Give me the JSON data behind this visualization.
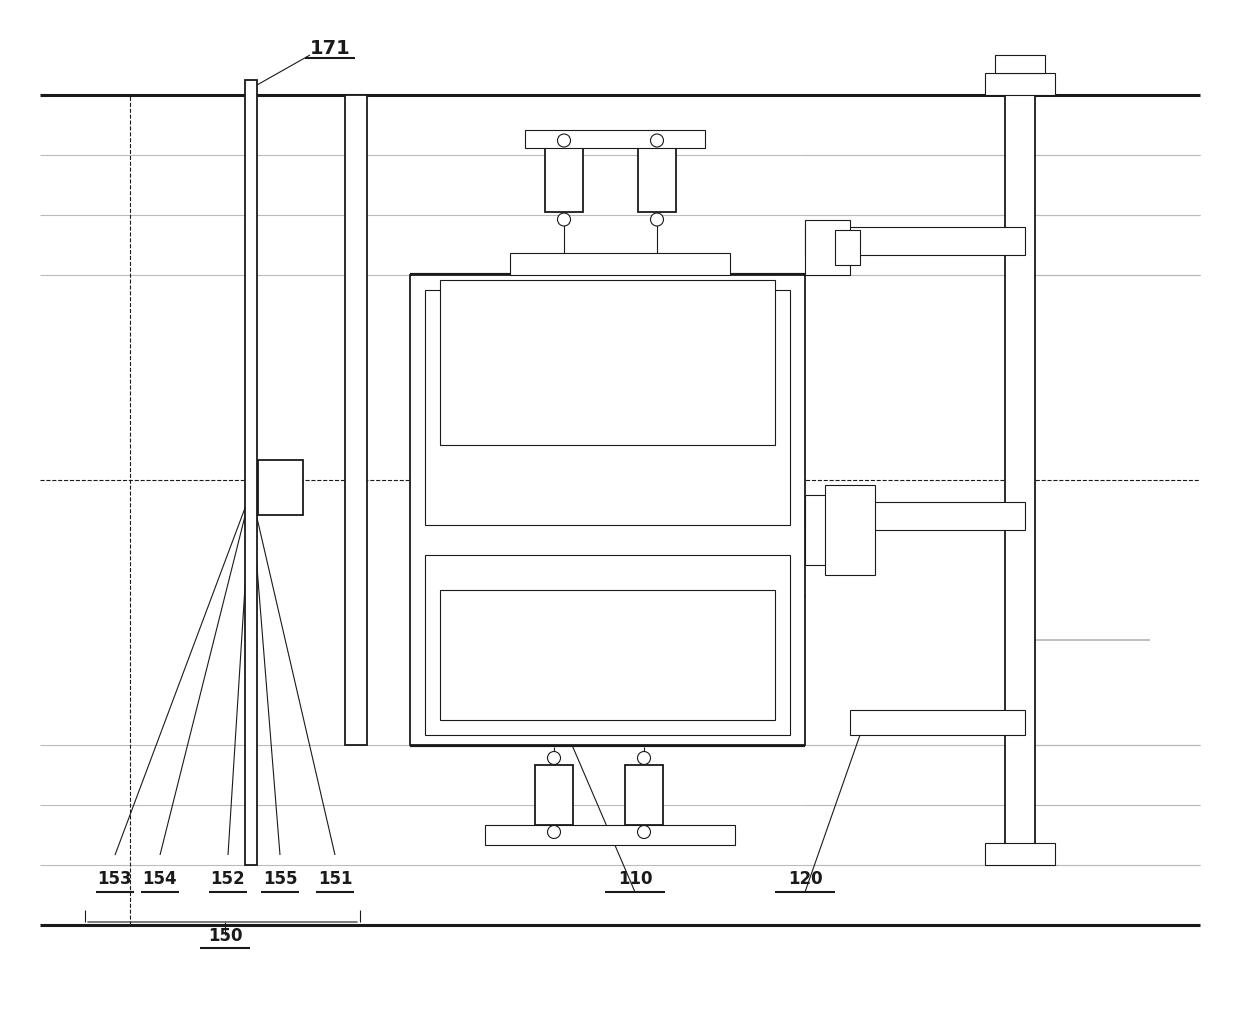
{
  "bg_color": "#ffffff",
  "line_color": "#1a1a1a",
  "gray_color": "#999999",
  "light_gray": "#bbbbbb",
  "fig_width": 12.4,
  "fig_height": 10.3,
  "lw_thin": 0.8,
  "lw_med": 1.3,
  "lw_thick": 2.2,
  "lw_heavy": 3.0
}
